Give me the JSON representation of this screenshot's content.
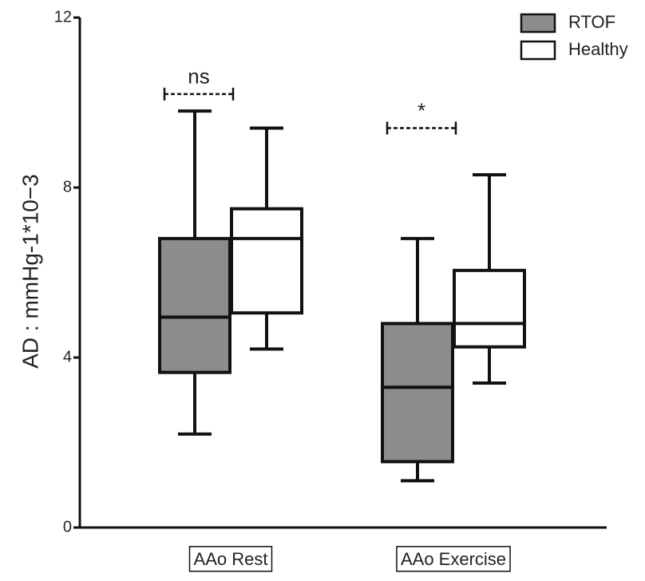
{
  "chart_data": {
    "type": "box",
    "y_label": "AD : mmHg-1*10−3",
    "categories": [
      "AAo Rest",
      "AAo Exercise"
    ],
    "series": [
      {
        "name": "RTOF",
        "color": "#8c8c8c",
        "min": [
          2.2,
          1.1
        ],
        "q1": [
          3.65,
          1.55
        ],
        "median": [
          4.95,
          3.3
        ],
        "q3": [
          6.8,
          4.8
        ],
        "max": [
          9.8,
          6.8
        ]
      },
      {
        "name": "Healthy",
        "color": "#ffffff",
        "min": [
          4.2,
          3.4
        ],
        "q1": [
          5.05,
          4.25
        ],
        "median": [
          6.8,
          4.8
        ],
        "q3": [
          7.5,
          6.05
        ],
        "max": [
          9.4,
          8.3
        ]
      }
    ],
    "annotations": [
      {
        "text": "ns",
        "y": 10.2
      },
      {
        "text": "*",
        "y": 9.4
      }
    ],
    "ylim": [
      0,
      12
    ],
    "yticks": [
      0,
      4,
      8,
      12
    ],
    "legend": "top-right"
  }
}
